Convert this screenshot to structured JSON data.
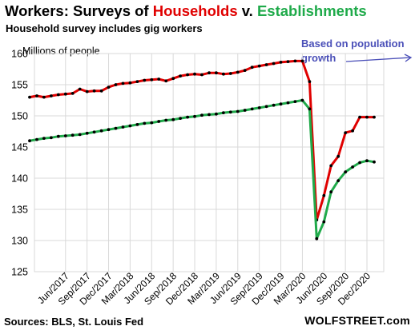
{
  "header": {
    "title_parts": [
      {
        "text": "Workers: Surveys of ",
        "color": "#000000"
      },
      {
        "text": "Households",
        "color": "#e00000"
      },
      {
        "text": " v. ",
        "color": "#000000"
      },
      {
        "text": "Establishments",
        "color": "#1faa4a"
      }
    ],
    "subtitle": "Household survey includes gig workers"
  },
  "footer": {
    "source": "Sources: BLS, St. Louis Fed",
    "brand": "WOLFSTREET.com"
  },
  "chart_data": {
    "type": "line",
    "ylabel": "Millions of people",
    "ylim": [
      125,
      160
    ],
    "yticks": [
      125,
      130,
      135,
      140,
      145,
      150,
      155,
      160
    ],
    "grid": true,
    "x_start": "2017-01",
    "x_end": "2020-12",
    "xticks": [
      "Jun/2017",
      "Sep/2017",
      "Dec/2017",
      "Mar/2018",
      "Jun/2018",
      "Sep/2018",
      "Dec/2018",
      "Mar/2019",
      "Jun/2019",
      "Sep/2019",
      "Dec/2019",
      "Mar/2020",
      "Jun/2020",
      "Sep/2020",
      "Dec/2020"
    ],
    "annotation": "Based on population growth",
    "colors": {
      "households": "#e00000",
      "establishments": "#1faa4a",
      "annotation": "#4a4fb8",
      "markers": "#000000"
    },
    "series": [
      {
        "key": "households",
        "values": [
          153.0,
          153.2,
          153.0,
          153.2,
          153.4,
          153.5,
          153.6,
          154.3,
          153.9,
          154.0,
          154.0,
          154.6,
          155.0,
          155.2,
          155.3,
          155.5,
          155.7,
          155.8,
          155.9,
          155.6,
          156.0,
          156.4,
          156.6,
          156.7,
          156.6,
          156.9,
          156.9,
          156.7,
          156.8,
          157.0,
          157.3,
          157.8,
          158.0,
          158.2,
          158.4,
          158.6,
          158.7,
          158.8,
          158.8,
          155.5,
          133.3,
          137.2,
          142.0,
          143.5,
          147.3,
          147.6,
          149.8,
          149.8,
          149.8
        ],
        "x_index_start": 0
      },
      {
        "key": "establishments",
        "values": [
          146.0,
          146.2,
          146.4,
          146.5,
          146.7,
          146.8,
          146.9,
          147.0,
          147.2,
          147.4,
          147.6,
          147.8,
          148.0,
          148.2,
          148.4,
          148.6,
          148.8,
          148.9,
          149.1,
          149.3,
          149.4,
          149.6,
          149.8,
          149.9,
          150.1,
          150.2,
          150.3,
          150.5,
          150.6,
          150.7,
          150.9,
          151.1,
          151.3,
          151.5,
          151.7,
          151.9,
          152.1,
          152.3,
          152.5,
          151.1,
          130.3,
          133.0,
          137.8,
          139.6,
          141.0,
          141.8,
          142.5,
          142.8,
          142.6
        ],
        "x_index_start": 0
      }
    ]
  }
}
